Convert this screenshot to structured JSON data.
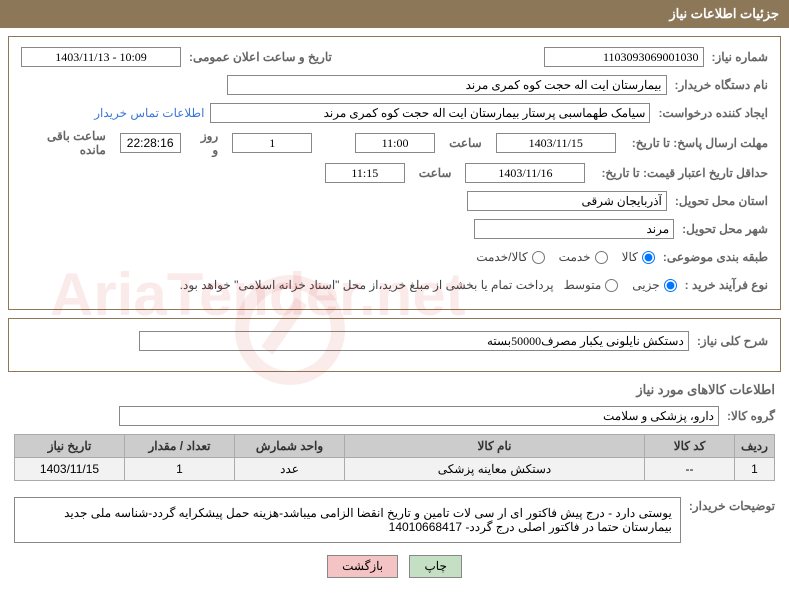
{
  "header": "جزئیات اطلاعات نیاز",
  "fields": {
    "need_number_label": "شماره نیاز:",
    "need_number": "1103093069001030",
    "announce_date_label": "تاریخ و ساعت اعلان عمومی:",
    "announce_date": "1403/11/13 - 10:09",
    "buyer_org_label": "نام دستگاه خریدار:",
    "buyer_org": "بیمارستان ایت اله حجت کوه کمری مرند",
    "requester_label": "ایجاد کننده درخواست:",
    "requester": "سیامک طهماسبی پرستار بیمارستان ایت اله حجت کوه کمری مرند",
    "contact_link": "اطلاعات تماس خریدار",
    "deadline_response_label": "مهلت ارسال پاسخ: تا تاریخ:",
    "deadline_response_date": "1403/11/15",
    "time_label": "ساعت",
    "deadline_response_time": "11:00",
    "days_label": "روز و",
    "remaining_days": "1",
    "countdown": "22:28:16",
    "remaining_label": "ساعت باقی مانده",
    "validity_label": "حداقل تاریخ اعتبار قیمت: تا تاریخ:",
    "validity_date": "1403/11/16",
    "validity_time": "11:15",
    "province_label": "استان محل تحویل:",
    "province": "آذربایجان شرقی",
    "city_label": "شهر محل تحویل:",
    "city": "مرند",
    "category_label": "طبقه بندی موضوعی:",
    "cat_goods": "کالا",
    "cat_service": "خدمت",
    "cat_both": "کالا/خدمت",
    "process_label": "نوع فرآیند خرید :",
    "proc_partial": "جزیی",
    "proc_medium": "متوسط",
    "payment_note": "پرداخت تمام یا بخشی از مبلغ خرید،از محل \"اسناد خزانه اسلامی\" خواهد بود.",
    "desc_label": "شرح کلی نیاز:",
    "desc_value": "دستکش نایلونی یکبار مصرف50000بسته",
    "goods_info_title": "اطلاعات کالاهای مورد نیاز",
    "goods_group_label": "گروه کالا:",
    "goods_group": "دارو، پزشکی و سلامت",
    "buyer_notes_label": "توضیحات خریدار:",
    "buyer_notes": "یوستی دارد - درج پیش فاکتور ای ار سی لات تامین و تاریخ انقضا الزامی میباشد-هزینه حمل پیشکرایه گردد-شناسه ملی جدید بیمارستان حتما در فاکتور اصلی درج  گردد- 14010668417"
  },
  "table": {
    "headers": [
      "ردیف",
      "کد کالا",
      "نام کالا",
      "واحد شمارش",
      "تعداد / مقدار",
      "تاریخ نیاز"
    ],
    "rows": [
      [
        "1",
        "--",
        "دستکش معاینه پزشکی",
        "عدد",
        "1",
        "1403/11/15"
      ]
    ]
  },
  "buttons": {
    "print": "چاپ",
    "back": "بازگشت"
  },
  "watermark": "AriaTender.net"
}
